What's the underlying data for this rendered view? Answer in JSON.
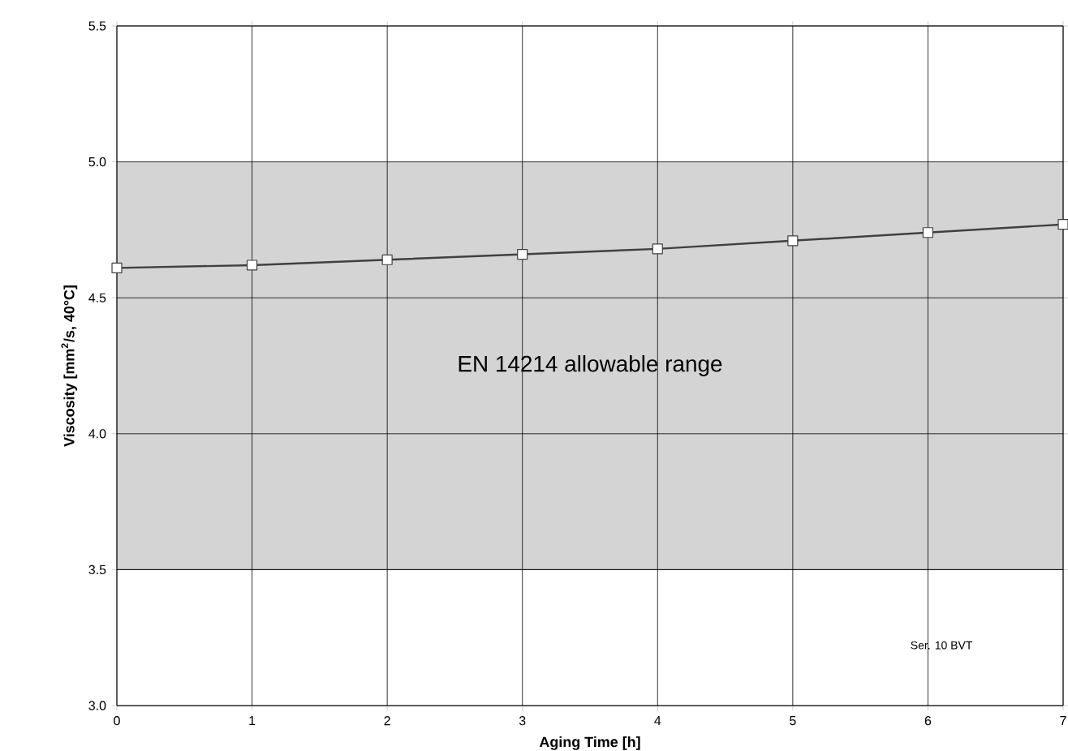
{
  "chart_data": {
    "type": "line",
    "xlabel": "Aging Time [h]",
    "ylabel": "Viscosity [mm$^{2}$/s, 40°C]",
    "x": [
      0,
      1,
      2,
      3,
      4,
      5,
      6,
      7
    ],
    "series": [
      {
        "color": "#404040",
        "values": [
          4.61,
          4.62,
          4.64,
          4.66,
          4.68,
          4.71,
          4.74,
          4.77
        ]
      }
    ],
    "marker": "square",
    "line_style": "solid",
    "grid": true,
    "xlim": [
      0,
      7
    ],
    "xticks": [
      0,
      1,
      2,
      3,
      4,
      5,
      6,
      7
    ],
    "ylim": [
      3.0,
      5.5
    ],
    "yticks": [
      {
        "value": 3,
        "label": "3.0"
      },
      3.5,
      {
        "value": 4,
        "label": "4.0"
      },
      4.5,
      {
        "value": 5,
        "label": "5.0"
      },
      5.5
    ],
    "bands": [
      {
        "axis": "y",
        "from": 3.5,
        "to": 5.0,
        "label": "EN 14214 allowable range",
        "color": "#d4d4d4"
      }
    ],
    "annotations": [
      "Ser. 10 BVT"
    ]
  }
}
